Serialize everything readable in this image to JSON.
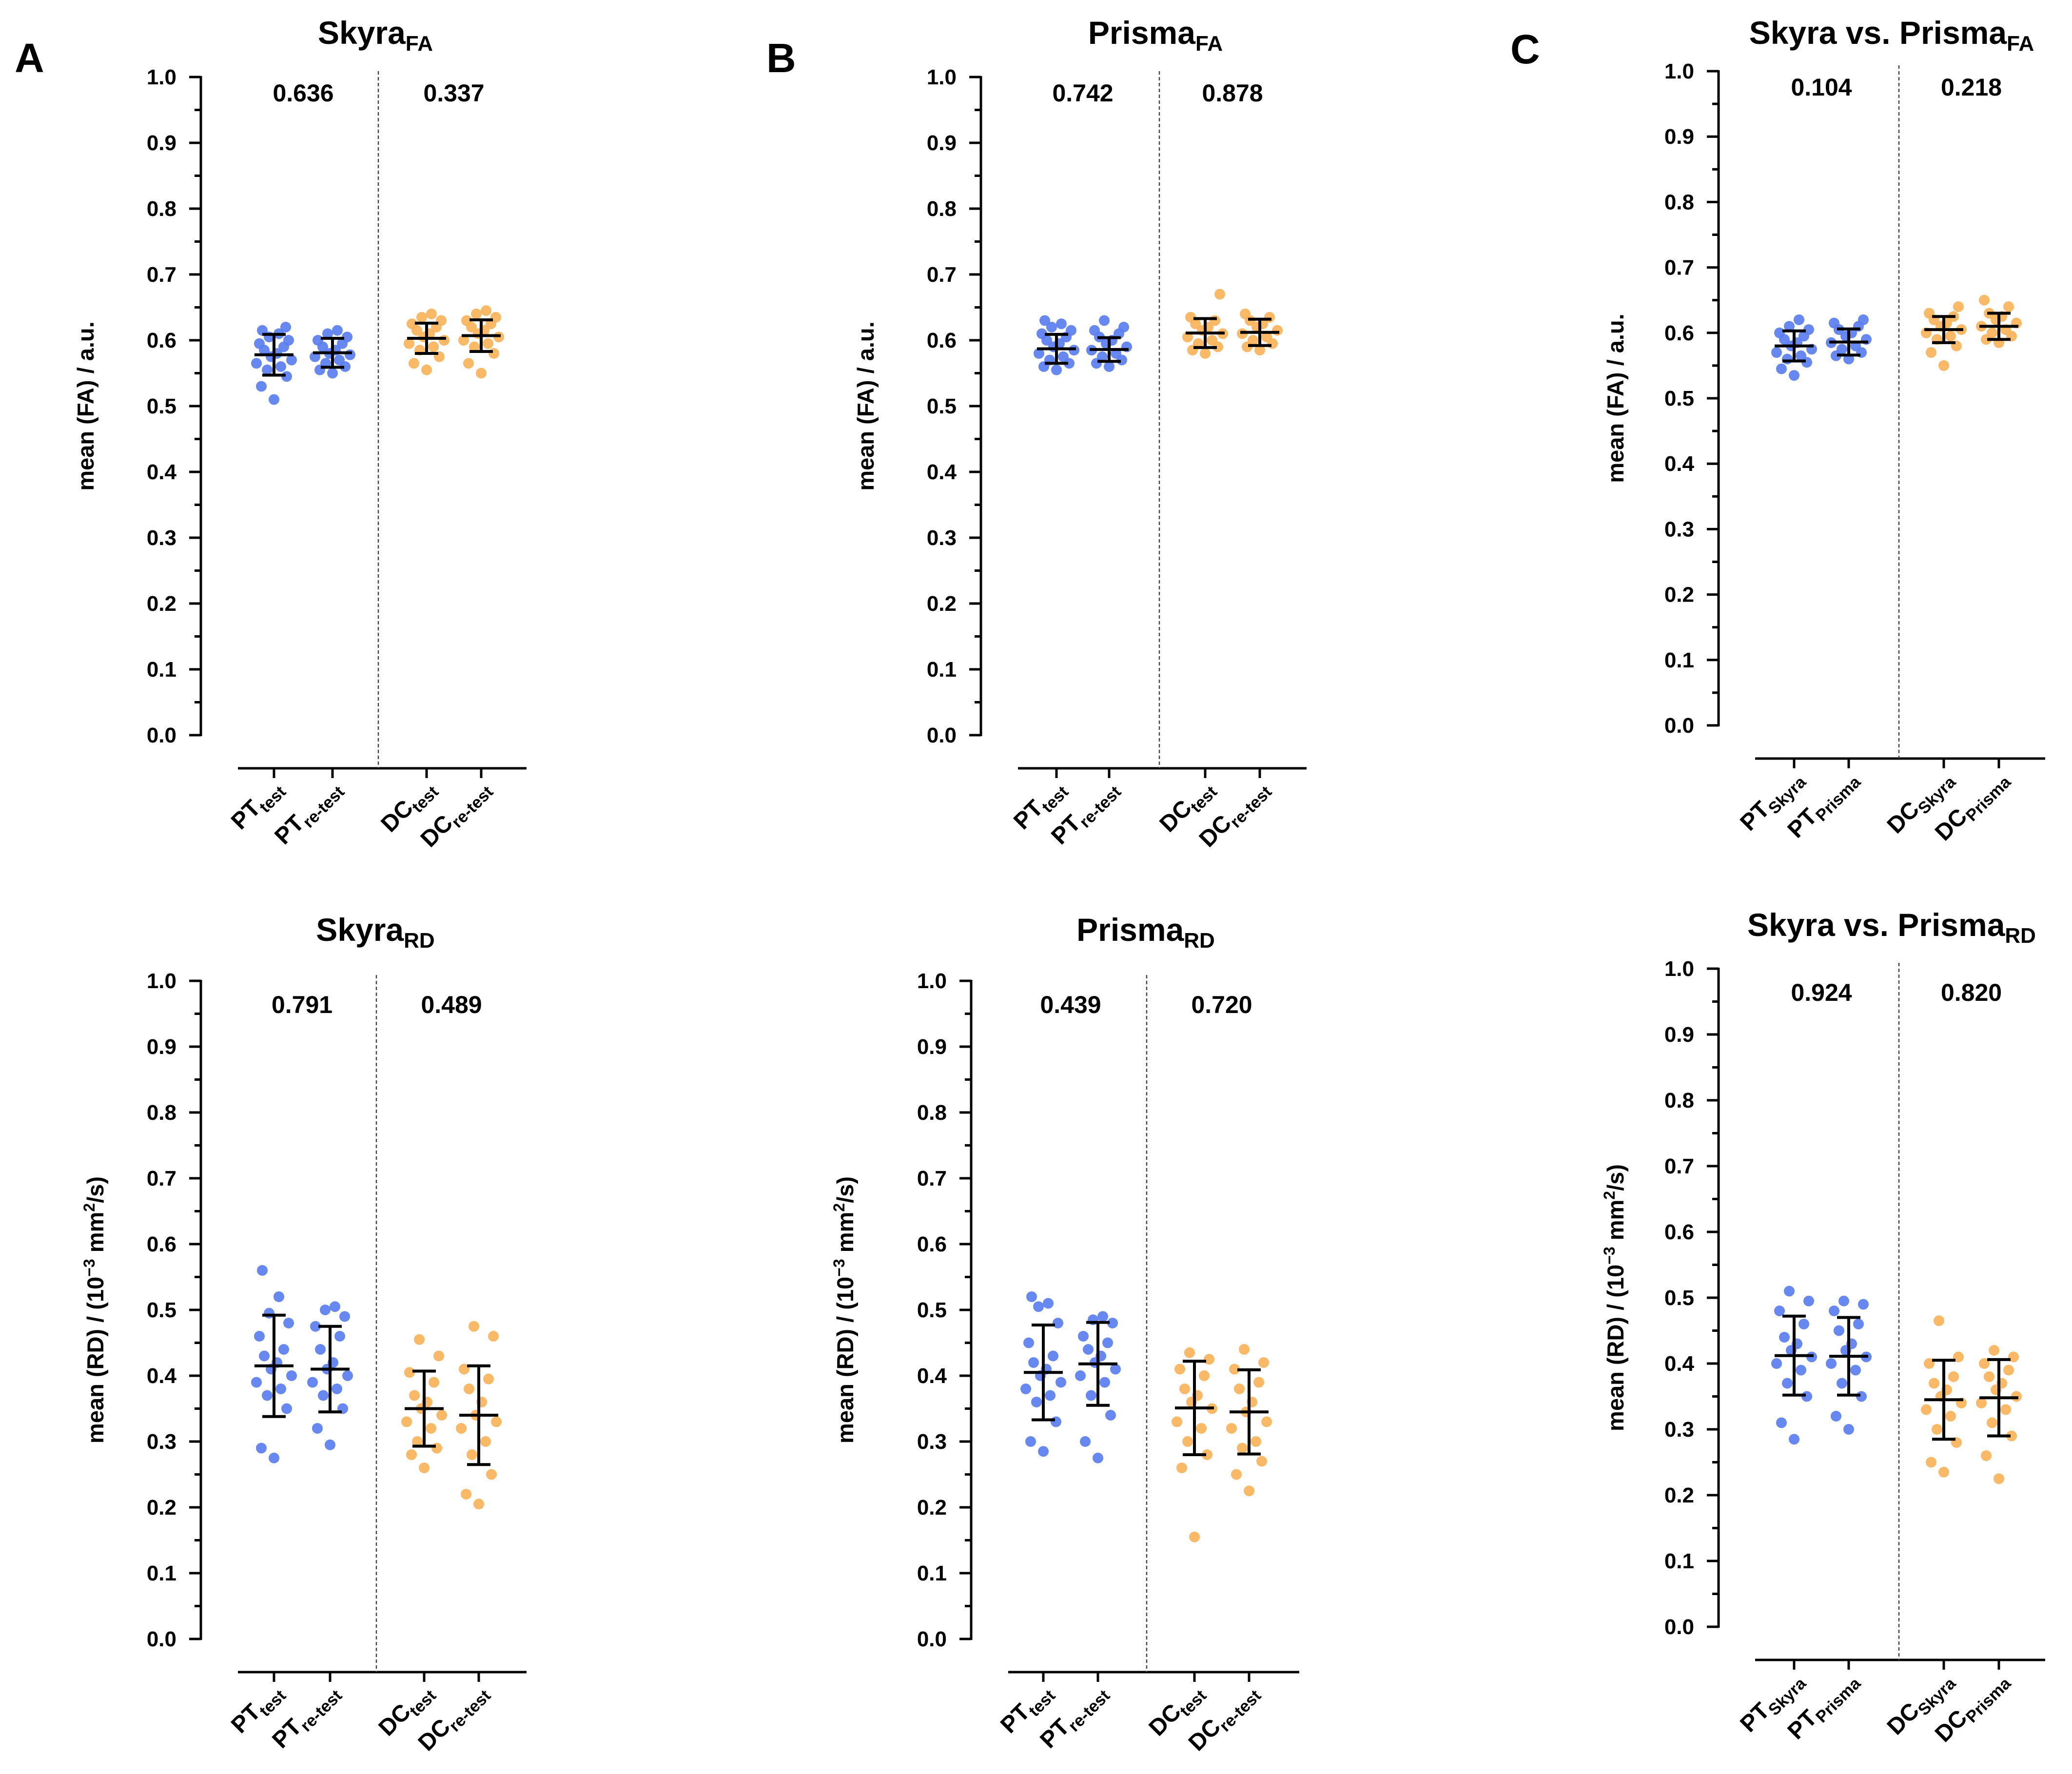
{
  "colors": {
    "pt": "#5b7ef0",
    "dc": "#f8b35a"
  },
  "chart_data": [
    {
      "type": "scatter",
      "panel_letter": "A",
      "title": "Skyra",
      "title_sub": "FA",
      "ylabel_parts": [
        "mean (FA) / a.u."
      ],
      "ylim": [
        0,
        1
      ],
      "yticks": [
        "0.0",
        "0.1",
        "0.2",
        "0.3",
        "0.4",
        "0.5",
        "0.6",
        "0.7",
        "0.8",
        "0.9",
        "1.0"
      ],
      "p_values": [
        "0.636",
        "0.337"
      ],
      "categories": [
        {
          "main": "PT",
          "sub": "test"
        },
        {
          "main": "PT",
          "sub": "re-test"
        },
        {
          "main": "DC",
          "sub": "test"
        },
        {
          "main": "DC",
          "sub": "re-test"
        }
      ],
      "series": [
        {
          "name": "PT test",
          "group": "pt",
          "mean": 0.578,
          "sd": 0.031,
          "values": [
            0.51,
            0.53,
            0.545,
            0.555,
            0.56,
            0.565,
            0.57,
            0.575,
            0.58,
            0.585,
            0.59,
            0.595,
            0.6,
            0.605,
            0.61,
            0.615,
            0.62
          ]
        },
        {
          "name": "PT re-test",
          "group": "pt",
          "mean": 0.581,
          "sd": 0.022,
          "values": [
            0.55,
            0.555,
            0.56,
            0.565,
            0.57,
            0.575,
            0.578,
            0.58,
            0.585,
            0.59,
            0.595,
            0.6,
            0.605,
            0.61,
            0.615
          ]
        },
        {
          "name": "DC test",
          "group": "dc",
          "mean": 0.603,
          "sd": 0.023,
          "values": [
            0.555,
            0.565,
            0.575,
            0.585,
            0.59,
            0.595,
            0.6,
            0.605,
            0.61,
            0.615,
            0.62,
            0.625,
            0.63,
            0.635,
            0.64
          ]
        },
        {
          "name": "DC re-test",
          "group": "dc",
          "mean": 0.607,
          "sd": 0.024,
          "values": [
            0.55,
            0.565,
            0.58,
            0.59,
            0.595,
            0.6,
            0.605,
            0.61,
            0.615,
            0.62,
            0.625,
            0.63,
            0.635,
            0.64,
            0.645
          ]
        }
      ]
    },
    {
      "type": "scatter",
      "panel_letter": "B",
      "title": "Prisma",
      "title_sub": "FA",
      "ylabel_parts": [
        "mean (FA) / a.u."
      ],
      "ylim": [
        0,
        1
      ],
      "yticks": [
        "0.0",
        "0.1",
        "0.2",
        "0.3",
        "0.4",
        "0.5",
        "0.6",
        "0.7",
        "0.8",
        "0.9",
        "1.0"
      ],
      "p_values": [
        "0.742",
        "0.878"
      ],
      "categories": [
        {
          "main": "PT",
          "sub": "test"
        },
        {
          "main": "PT",
          "sub": "re-test"
        },
        {
          "main": "DC",
          "sub": "test"
        },
        {
          "main": "DC",
          "sub": "re-test"
        }
      ],
      "series": [
        {
          "name": "PT test",
          "group": "pt",
          "mean": 0.587,
          "sd": 0.022,
          "values": [
            0.555,
            0.56,
            0.565,
            0.57,
            0.575,
            0.58,
            0.585,
            0.59,
            0.595,
            0.6,
            0.605,
            0.61,
            0.615,
            0.62,
            0.625,
            0.63
          ]
        },
        {
          "name": "PT re-test",
          "group": "pt",
          "mean": 0.586,
          "sd": 0.018,
          "values": [
            0.56,
            0.565,
            0.57,
            0.575,
            0.58,
            0.585,
            0.59,
            0.595,
            0.6,
            0.605,
            0.61,
            0.615,
            0.62,
            0.63
          ]
        },
        {
          "name": "DC test",
          "group": "dc",
          "mean": 0.611,
          "sd": 0.022,
          "values": [
            0.58,
            0.585,
            0.59,
            0.595,
            0.6,
            0.605,
            0.61,
            0.615,
            0.62,
            0.625,
            0.63,
            0.635,
            0.67
          ]
        },
        {
          "name": "DC re-test",
          "group": "dc",
          "mean": 0.612,
          "sd": 0.02,
          "values": [
            0.585,
            0.59,
            0.595,
            0.6,
            0.605,
            0.61,
            0.615,
            0.62,
            0.625,
            0.63,
            0.635,
            0.64
          ]
        }
      ]
    },
    {
      "type": "scatter",
      "panel_letter": "C",
      "title": "Skyra vs. Prisma",
      "title_sub": "FA",
      "ylabel_parts": [
        "mean (FA) / a.u."
      ],
      "ylim": [
        0,
        1
      ],
      "yticks": [
        "0.0",
        "0.1",
        "0.2",
        "0.3",
        "0.4",
        "0.5",
        "0.6",
        "0.7",
        "0.8",
        "0.9",
        "1.0"
      ],
      "p_values": [
        "0.104",
        "0.218"
      ],
      "categories": [
        {
          "main": "PT",
          "sub": "Skyra"
        },
        {
          "main": "PT",
          "sub": "Prisma"
        },
        {
          "main": "DC",
          "sub": "Skyra"
        },
        {
          "main": "DC",
          "sub": "Prisma"
        }
      ],
      "series": [
        {
          "name": "PT Skyra",
          "group": "pt",
          "mean": 0.58,
          "sd": 0.023,
          "values": [
            0.535,
            0.545,
            0.555,
            0.56,
            0.565,
            0.57,
            0.575,
            0.58,
            0.585,
            0.59,
            0.595,
            0.6,
            0.605,
            0.61,
            0.62
          ]
        },
        {
          "name": "PT Prisma",
          "group": "pt",
          "mean": 0.586,
          "sd": 0.02,
          "values": [
            0.56,
            0.565,
            0.57,
            0.575,
            0.58,
            0.585,
            0.59,
            0.595,
            0.6,
            0.605,
            0.61,
            0.615,
            0.62
          ]
        },
        {
          "name": "DC Skyra",
          "group": "dc",
          "mean": 0.605,
          "sd": 0.02,
          "values": [
            0.55,
            0.57,
            0.58,
            0.59,
            0.595,
            0.6,
            0.605,
            0.61,
            0.615,
            0.62,
            0.625,
            0.63,
            0.64
          ]
        },
        {
          "name": "DC Prisma",
          "group": "dc",
          "mean": 0.61,
          "sd": 0.02,
          "values": [
            0.585,
            0.59,
            0.595,
            0.6,
            0.605,
            0.61,
            0.615,
            0.62,
            0.625,
            0.63,
            0.64,
            0.65
          ]
        }
      ]
    },
    {
      "type": "scatter",
      "panel_letter": "",
      "title": "Skyra",
      "title_sub": "RD",
      "ylabel_parts": [
        "mean (RD) / (10",
        "−3",
        " mm",
        "2",
        "/s)"
      ],
      "ylim": [
        0,
        1
      ],
      "yticks": [
        "0.0",
        "0.1",
        "0.2",
        "0.3",
        "0.4",
        "0.5",
        "0.6",
        "0.7",
        "0.8",
        "0.9",
        "1.0"
      ],
      "p_values": [
        "0.791",
        "0.489"
      ],
      "categories": [
        {
          "main": "PT",
          "sub": "test"
        },
        {
          "main": "PT",
          "sub": "re-test"
        },
        {
          "main": "DC",
          "sub": "test"
        },
        {
          "main": "DC",
          "sub": "re-test"
        }
      ],
      "series": [
        {
          "name": "PT test",
          "group": "pt",
          "mean": 0.415,
          "sd": 0.077,
          "values": [
            0.275,
            0.29,
            0.35,
            0.37,
            0.38,
            0.39,
            0.4,
            0.41,
            0.42,
            0.43,
            0.44,
            0.46,
            0.48,
            0.495,
            0.52,
            0.56
          ]
        },
        {
          "name": "PT re-test",
          "group": "pt",
          "mean": 0.41,
          "sd": 0.065,
          "values": [
            0.295,
            0.32,
            0.35,
            0.37,
            0.38,
            0.39,
            0.4,
            0.41,
            0.42,
            0.44,
            0.46,
            0.475,
            0.49,
            0.5,
            0.505
          ]
        },
        {
          "name": "DC test",
          "group": "dc",
          "mean": 0.35,
          "sd": 0.057,
          "values": [
            0.26,
            0.28,
            0.29,
            0.3,
            0.32,
            0.33,
            0.34,
            0.35,
            0.36,
            0.37,
            0.39,
            0.405,
            0.43,
            0.455
          ]
        },
        {
          "name": "DC re-test",
          "group": "dc",
          "mean": 0.34,
          "sd": 0.075,
          "values": [
            0.205,
            0.22,
            0.25,
            0.28,
            0.3,
            0.32,
            0.33,
            0.34,
            0.36,
            0.38,
            0.395,
            0.41,
            0.46,
            0.475
          ]
        }
      ]
    },
    {
      "type": "scatter",
      "panel_letter": "",
      "title": "Prisma",
      "title_sub": "RD",
      "ylabel_parts": [
        "mean (RD) / (10",
        "−3",
        " mm",
        "2",
        "/s)"
      ],
      "ylim": [
        0,
        1
      ],
      "yticks": [
        "0.0",
        "0.1",
        "0.2",
        "0.3",
        "0.4",
        "0.5",
        "0.6",
        "0.7",
        "0.8",
        "0.9",
        "1.0"
      ],
      "p_values": [
        "0.439",
        "0.720"
      ],
      "categories": [
        {
          "main": "PT",
          "sub": "test"
        },
        {
          "main": "PT",
          "sub": "re-test"
        },
        {
          "main": "DC",
          "sub": "test"
        },
        {
          "main": "DC",
          "sub": "re-test"
        }
      ],
      "series": [
        {
          "name": "PT test",
          "group": "pt",
          "mean": 0.405,
          "sd": 0.072,
          "values": [
            0.285,
            0.3,
            0.33,
            0.36,
            0.37,
            0.38,
            0.39,
            0.4,
            0.41,
            0.42,
            0.43,
            0.45,
            0.48,
            0.505,
            0.51,
            0.52
          ]
        },
        {
          "name": "PT re-test",
          "group": "pt",
          "mean": 0.418,
          "sd": 0.063,
          "values": [
            0.275,
            0.3,
            0.34,
            0.37,
            0.39,
            0.4,
            0.41,
            0.42,
            0.43,
            0.44,
            0.45,
            0.46,
            0.48,
            0.485,
            0.49
          ]
        },
        {
          "name": "DC test",
          "group": "dc",
          "mean": 0.351,
          "sd": 0.071,
          "values": [
            0.155,
            0.26,
            0.28,
            0.3,
            0.32,
            0.33,
            0.35,
            0.36,
            0.37,
            0.38,
            0.4,
            0.41,
            0.425,
            0.435
          ]
        },
        {
          "name": "DC re-test",
          "group": "dc",
          "mean": 0.345,
          "sd": 0.064,
          "values": [
            0.225,
            0.25,
            0.27,
            0.29,
            0.3,
            0.32,
            0.33,
            0.345,
            0.36,
            0.38,
            0.39,
            0.41,
            0.42,
            0.44
          ]
        }
      ]
    },
    {
      "type": "scatter",
      "panel_letter": "",
      "title": "Skyra vs. Prisma",
      "title_sub": "RD",
      "ylabel_parts": [
        "mean (RD) / (10",
        "−3",
        " mm",
        "2",
        "/s)"
      ],
      "ylim": [
        0,
        1
      ],
      "yticks": [
        "0.0",
        "0.1",
        "0.2",
        "0.3",
        "0.4",
        "0.5",
        "0.6",
        "0.7",
        "0.8",
        "0.9",
        "1.0"
      ],
      "p_values": [
        "0.924",
        "0.820"
      ],
      "categories": [
        {
          "main": "PT",
          "sub": "Skyra"
        },
        {
          "main": "PT",
          "sub": "Prisma"
        },
        {
          "main": "DC",
          "sub": "Skyra"
        },
        {
          "main": "DC",
          "sub": "Prisma"
        }
      ],
      "series": [
        {
          "name": "PT Skyra",
          "group": "pt",
          "mean": 0.412,
          "sd": 0.06,
          "values": [
            0.285,
            0.31,
            0.35,
            0.37,
            0.39,
            0.4,
            0.41,
            0.42,
            0.43,
            0.44,
            0.46,
            0.48,
            0.495,
            0.51
          ]
        },
        {
          "name": "PT Prisma",
          "group": "pt",
          "mean": 0.411,
          "sd": 0.059,
          "values": [
            0.3,
            0.32,
            0.35,
            0.37,
            0.39,
            0.4,
            0.41,
            0.42,
            0.43,
            0.45,
            0.46,
            0.48,
            0.49,
            0.495
          ]
        },
        {
          "name": "DC Skyra",
          "group": "dc",
          "mean": 0.345,
          "sd": 0.06,
          "values": [
            0.235,
            0.25,
            0.28,
            0.3,
            0.32,
            0.33,
            0.34,
            0.35,
            0.36,
            0.37,
            0.38,
            0.4,
            0.41,
            0.465
          ]
        },
        {
          "name": "DC Prisma",
          "group": "dc",
          "mean": 0.348,
          "sd": 0.058,
          "values": [
            0.225,
            0.26,
            0.29,
            0.31,
            0.33,
            0.34,
            0.35,
            0.36,
            0.37,
            0.38,
            0.39,
            0.4,
            0.41,
            0.42
          ]
        }
      ]
    }
  ]
}
